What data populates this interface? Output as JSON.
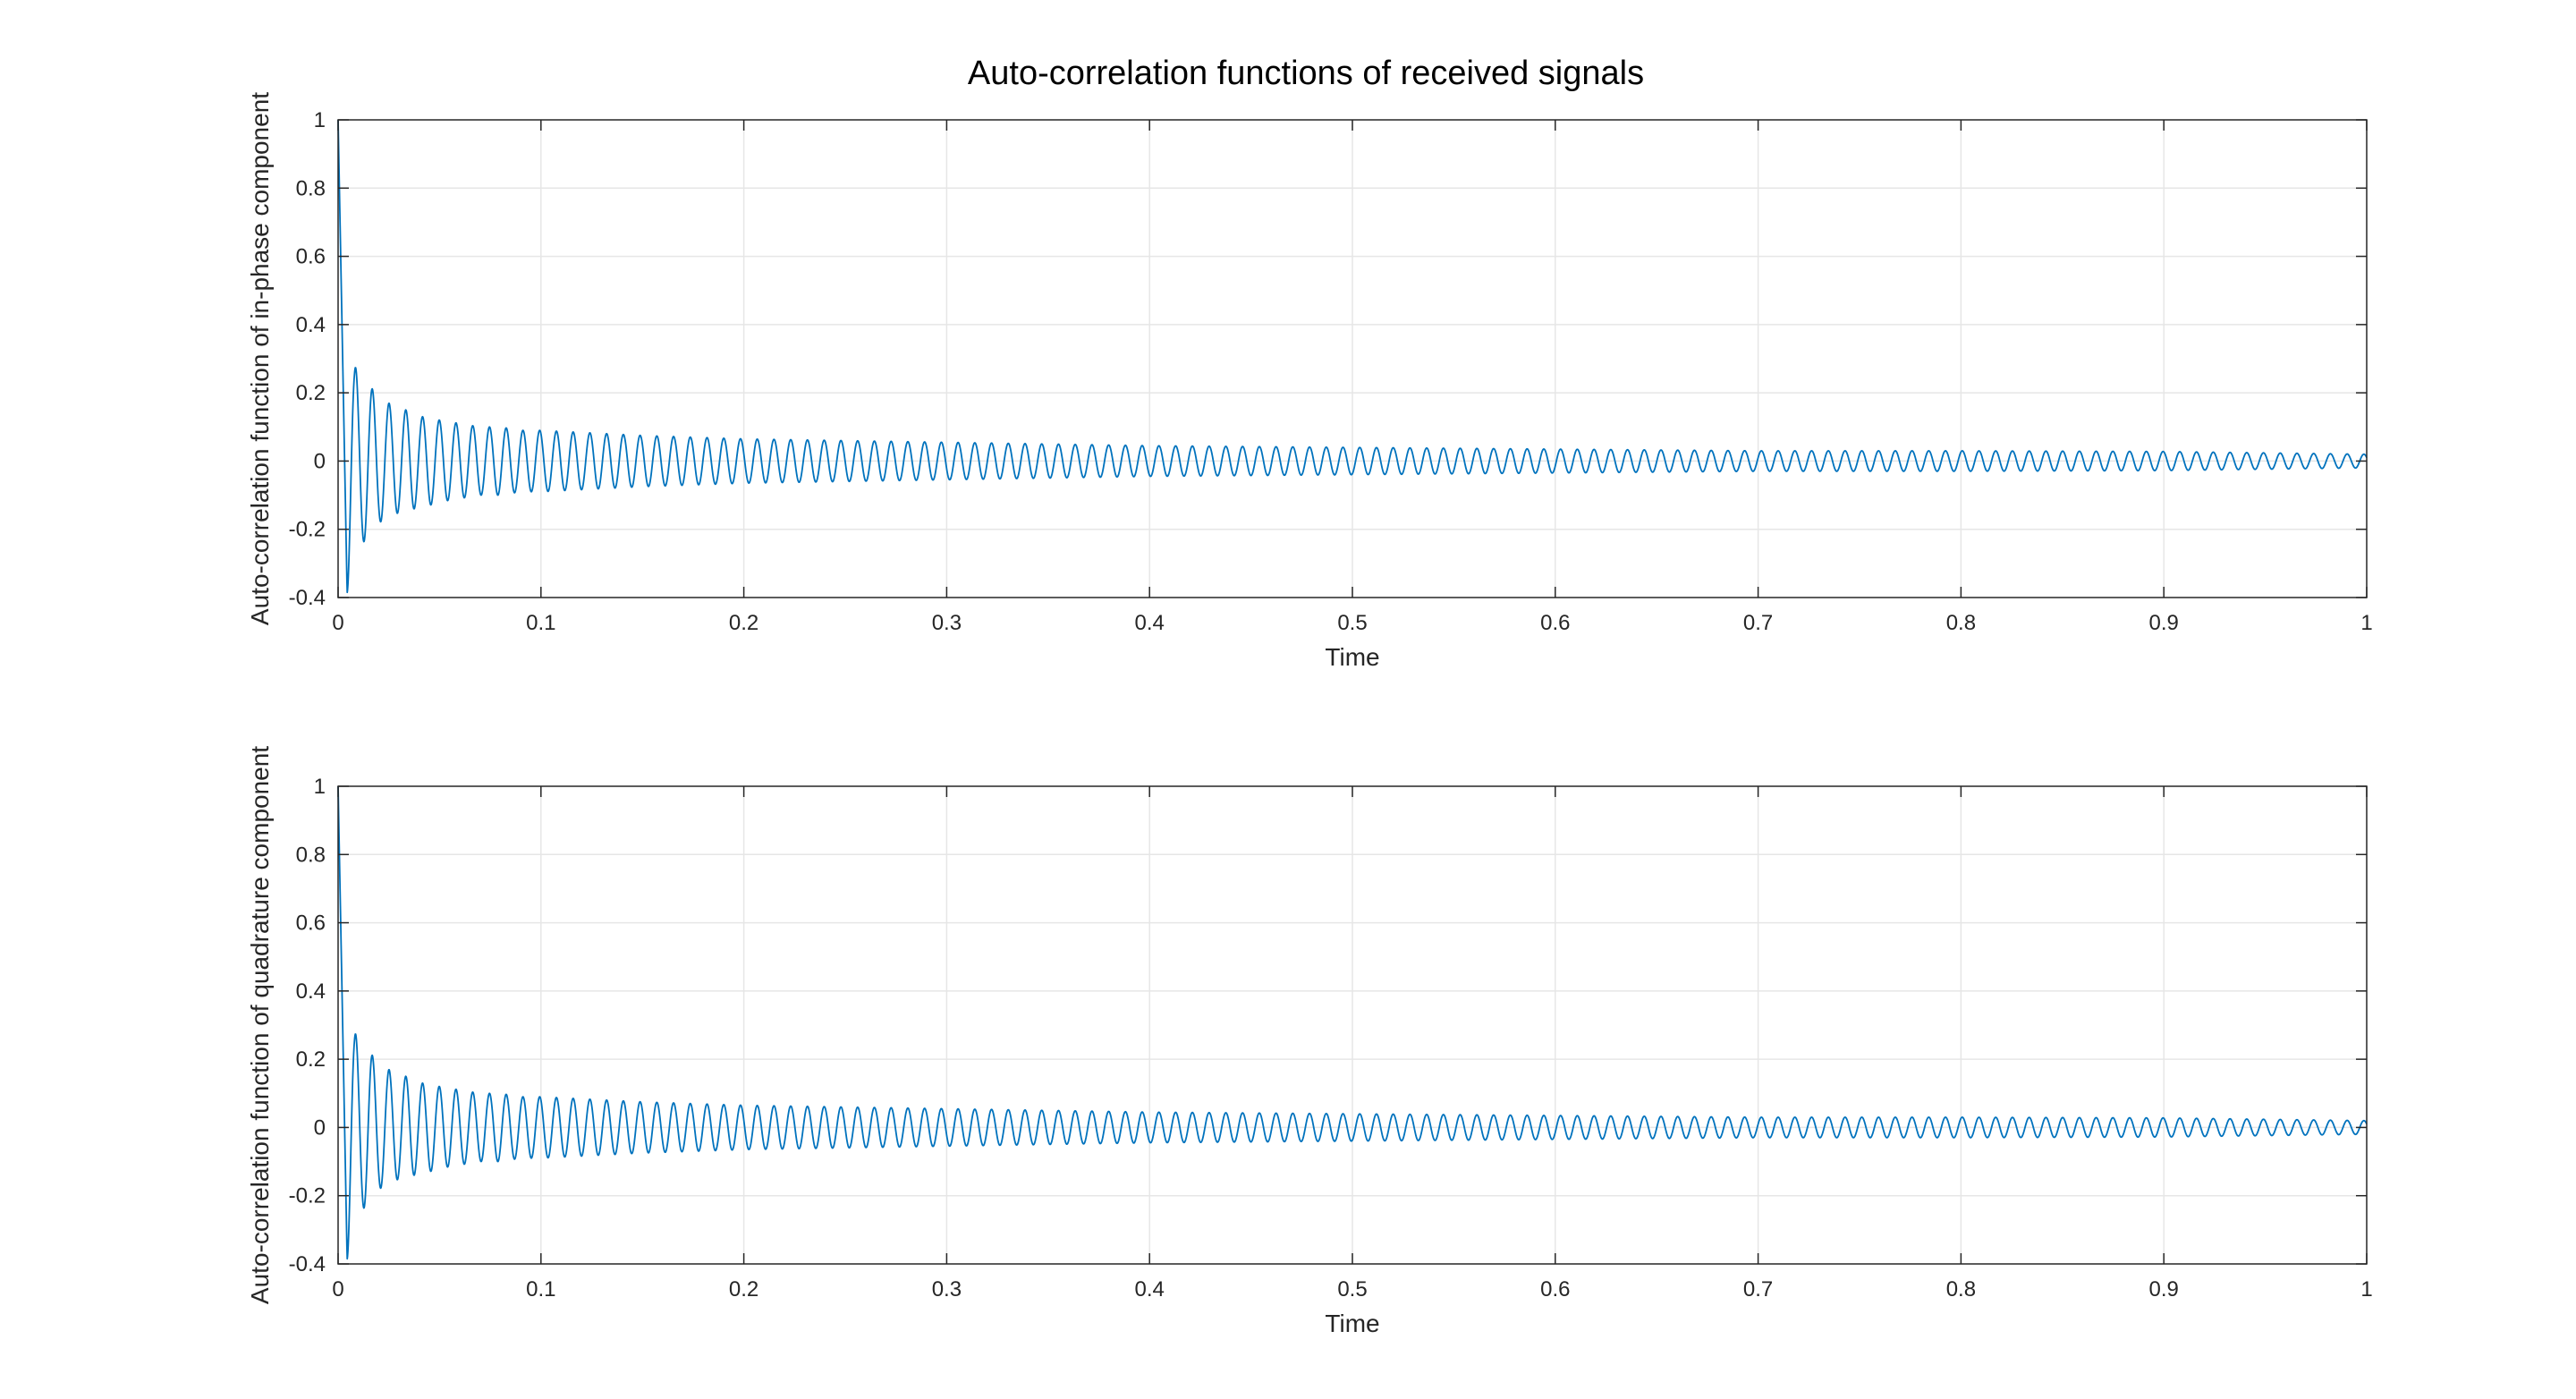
{
  "title": "Auto-correlation functions of received signals",
  "colors": {
    "line": "#0072BD",
    "grid": "#e6e6e6",
    "axis": "#262626"
  },
  "chart_data": [
    {
      "type": "line",
      "title": "",
      "xlabel": "Time",
      "ylabel": "Auto-correlation function of in-phase component",
      "xlim": [
        0,
        1
      ],
      "ylim": [
        -0.4,
        1
      ],
      "xticks": [
        0,
        0.1,
        0.2,
        0.3,
        0.4,
        0.5,
        0.6,
        0.7,
        0.8,
        0.9,
        1
      ],
      "xtick_labels": [
        "0",
        "0.1",
        "0.2",
        "0.3",
        "0.4",
        "0.5",
        "0.6",
        "0.7",
        "0.8",
        "0.9",
        "1"
      ],
      "yticks": [
        -0.4,
        -0.2,
        0,
        0.2,
        0.4,
        0.6,
        0.8,
        1
      ],
      "ytick_labels": [
        "-0.4",
        "-0.2",
        "0",
        "0.2",
        "0.4",
        "0.6",
        "0.8",
        "1"
      ],
      "grid": true,
      "series": [
        {
          "x": [
            0,
            0.004,
            0.008,
            0.012,
            0.016,
            0.02,
            0.025,
            0.03,
            0.035,
            0.04,
            0.045,
            0.05,
            0.06,
            0.07,
            0.08,
            0.09,
            0.1,
            0.15,
            0.2,
            0.3,
            0.4,
            0.5,
            0.6,
            0.7,
            0.8,
            0.9,
            1.0
          ],
          "y": [
            1,
            -0.4,
            0.28,
            -0.24,
            0.22,
            -0.18,
            0.17,
            -0.15,
            0.15,
            -0.13,
            0.13,
            -0.12,
            0.11,
            -0.1,
            0.1,
            -0.09,
            0.09,
            -0.075,
            0.065,
            -0.055,
            0.045,
            -0.04,
            0.035,
            -0.03,
            0.03,
            -0.028,
            -0.02
          ]
        }
      ]
    },
    {
      "type": "line",
      "title": "",
      "xlabel": "Time",
      "ylabel": "Auto-correlation function of quadrature component",
      "xlim": [
        0,
        1
      ],
      "ylim": [
        -0.4,
        1
      ],
      "xticks": [
        0,
        0.1,
        0.2,
        0.3,
        0.4,
        0.5,
        0.6,
        0.7,
        0.8,
        0.9,
        1
      ],
      "xtick_labels": [
        "0",
        "0.1",
        "0.2",
        "0.3",
        "0.4",
        "0.5",
        "0.6",
        "0.7",
        "0.8",
        "0.9",
        "1"
      ],
      "yticks": [
        -0.4,
        -0.2,
        0,
        0.2,
        0.4,
        0.6,
        0.8,
        1
      ],
      "ytick_labels": [
        "-0.4",
        "-0.2",
        "0",
        "0.2",
        "0.4",
        "0.6",
        "0.8",
        "1"
      ],
      "grid": true,
      "series": [
        {
          "x": [
            0,
            0.004,
            0.008,
            0.012,
            0.016,
            0.02,
            0.025,
            0.03,
            0.035,
            0.04,
            0.045,
            0.05,
            0.06,
            0.07,
            0.08,
            0.09,
            0.1,
            0.15,
            0.2,
            0.3,
            0.4,
            0.5,
            0.6,
            0.7,
            0.8,
            0.9,
            1.0
          ],
          "y": [
            1,
            -0.4,
            0.28,
            -0.24,
            0.22,
            -0.18,
            0.17,
            -0.15,
            0.15,
            -0.13,
            0.13,
            -0.12,
            0.11,
            -0.1,
            0.1,
            -0.09,
            0.09,
            -0.075,
            0.065,
            -0.055,
            0.045,
            -0.04,
            0.035,
            -0.03,
            0.03,
            -0.028,
            -0.02
          ]
        }
      ]
    }
  ]
}
